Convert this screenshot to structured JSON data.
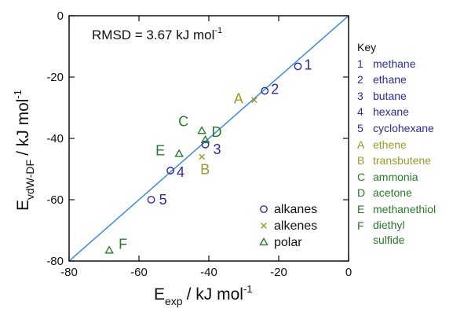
{
  "chart_data": {
    "type": "scatter",
    "title": "",
    "xlabel_main": "E",
    "xlabel_sub": "exp",
    "xlabel_rest": "/ kJ mol",
    "xlabel_sup": "-1",
    "ylabel_main": "E",
    "ylabel_sub": "vdW-DF",
    "ylabel_rest": "/ kJ mol",
    "ylabel_sup": "-1",
    "annotation_main": "RMSD = 3.67 kJ mol",
    "annotation_sup": "-1",
    "xlim": [
      -80,
      0
    ],
    "ylim": [
      -80,
      0
    ],
    "x_ticks": [
      -80,
      -60,
      -40,
      -20,
      0
    ],
    "y_ticks": [
      -80,
      -60,
      -40,
      -20,
      0
    ],
    "x_tick_labels": [
      "-80",
      "-60",
      "-40",
      "-20",
      "0"
    ],
    "y_tick_labels": [
      "-80",
      "-60",
      "-40",
      "-20",
      "0"
    ],
    "reference_line": {
      "from": [
        -80,
        -80
      ],
      "to": [
        0,
        0
      ],
      "color": "#4a90d9"
    },
    "legend_position": "bottom-right",
    "series": [
      {
        "name": "alkanes",
        "marker": "circle",
        "color": "#2b2b9a",
        "points": [
          {
            "label": "1",
            "x": -14.5,
            "y": -16.5
          },
          {
            "label": "2",
            "x": -24.0,
            "y": -24.5
          },
          {
            "label": "3",
            "x": -41.0,
            "y": -42.0
          },
          {
            "label": "4",
            "x": -51.0,
            "y": -50.5
          },
          {
            "label": "5",
            "x": -56.5,
            "y": -60.0
          }
        ]
      },
      {
        "name": "alkenes",
        "marker": "x",
        "color": "#9a9a2a",
        "points": [
          {
            "label": "A",
            "x": -27.0,
            "y": -27.5
          },
          {
            "label": "B",
            "x": -42.0,
            "y": -46.0
          }
        ]
      },
      {
        "name": "polar",
        "marker": "triangle",
        "color": "#2a7a2a",
        "points": [
          {
            "label": "C",
            "x": -42.0,
            "y": -37.5
          },
          {
            "label": "D",
            "x": -41.0,
            "y": -40.5
          },
          {
            "label": "E",
            "x": -48.5,
            "y": -45.0
          },
          {
            "label": "F",
            "x": -68.5,
            "y": -76.5
          }
        ]
      }
    ]
  },
  "key": {
    "title": "Key",
    "entries": [
      {
        "letter": "1",
        "name": "methane",
        "color": "#2b2b9a"
      },
      {
        "letter": "2",
        "name": "ethane",
        "color": "#2b2b9a"
      },
      {
        "letter": "3",
        "name": "butane",
        "color": "#2b2b9a"
      },
      {
        "letter": "4",
        "name": "hexane",
        "color": "#2b2b9a"
      },
      {
        "letter": "5",
        "name": "cyclohexane",
        "color": "#2b2b9a"
      },
      {
        "letter": "A",
        "name": "ethene",
        "color": "#9a9a2a"
      },
      {
        "letter": "B",
        "name": "transbutene",
        "color": "#9a9a2a"
      },
      {
        "letter": "C",
        "name": "ammonia",
        "color": "#2a7a2a"
      },
      {
        "letter": "D",
        "name": "acetone",
        "color": "#2a7a2a"
      },
      {
        "letter": "E",
        "name": "methanethiol",
        "color": "#2a7a2a"
      },
      {
        "letter": "F",
        "name": "diethyl sulfide",
        "color": "#2a7a2a"
      }
    ]
  }
}
